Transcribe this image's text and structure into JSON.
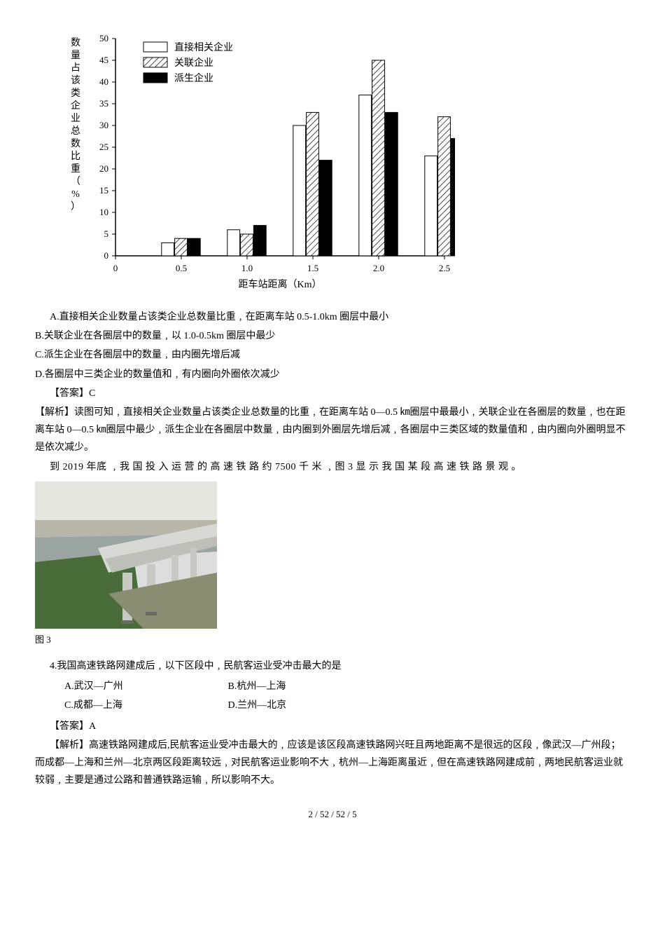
{
  "chart": {
    "type": "bar",
    "ylabel": "数量占该类企业总数比重（%）",
    "xlabel": "距车站距离（Km）",
    "ylim": [
      0,
      50
    ],
    "ytick_step": 5,
    "xticks": [
      "0",
      "0.5",
      "1.0",
      "1.5",
      "2.0",
      "2.5"
    ],
    "legend": [
      {
        "label": "直接相关企业",
        "color": "#ffffff",
        "stroke": "#000000"
      },
      {
        "label": "关联企业",
        "color": "#ffffff",
        "stroke": "#000000",
        "hatch": true
      },
      {
        "label": "派生企业",
        "color": "#000000",
        "stroke": "#000000"
      }
    ],
    "categories": [
      0.5,
      1.0,
      1.5,
      2.0,
      2.5
    ],
    "series": {
      "direct": [
        3,
        6,
        30,
        37,
        23
      ],
      "related": [
        4,
        5,
        33,
        45,
        32
      ],
      "derived": [
        4,
        7,
        22,
        33,
        27
      ]
    },
    "bar_group_width": 0.6,
    "axis_color": "#000000",
    "label_fontsize": 14,
    "tick_fontsize": 13,
    "legend_fontsize": 14
  },
  "q3": {
    "A": "A.直接相关企业数量占该类企业总数量比重﹐在距离车站 0.5-1.0km 圈层中最小",
    "B": "B.关联企业在各圈层中的数量﹐以 1.0-0.5km 圈层中最少",
    "C": "C.派生企业在各圈层中的数量﹐由内圈先增后减",
    "D": "D.各圈层中三类企业的数量值和﹐有内圈向外圈依次减少",
    "answer_label": "【答案】C",
    "analysis_label": "【解析】",
    "analysis": "读图可知﹐直接相关企业数量占该类企业总数量的比重﹐在距离车站 0—0.5 ㎞圈层中最最小﹐关联企业在各圈层的数量﹐也在距离车站 0—0.5 ㎞圈层中最少﹐派生企业在各圈层中数量﹐由内圈到外圈层先增后减﹐各圈层中三类区域的数量值和﹐由内圈向外圈明显不是依次减少。"
  },
  "passage2": "到 2019 年底 ﹐我 国 投 入 运 营 的 高 速 铁 路 约 7500 千 米 ﹐图 3 显 示 我 国 某 段 高 速 铁 路 景 观 。",
  "photo_caption": "图 3",
  "q4": {
    "stem": "4.我国高速铁路网建成后﹐以下区段中﹐民航客运业受冲击最大的是",
    "A": "A.武汉—广州",
    "B": "B.杭州—上海",
    "C": "C.成都—上海",
    "D": "D.兰州—北京",
    "answer_label": "【答案】A",
    "analysis_label": "【解析】",
    "analysis": "高速铁路网建成后,民航客运业受冲击最大的﹐应该是该区段高速铁路网兴旺且两地距离不是很远的区段﹐像武汉—广州段；而成都—上海和兰州—北京两区段距离较远﹐对民航客运业影响不大﹐杭州—上海距离虽近﹐但在高速铁路网建成前﹐两地民航客运业就较弱﹐主要是通过公路和普通铁路运输﹐所以影响不大。"
  },
  "footer": "2 / 52 / 52 / 5"
}
